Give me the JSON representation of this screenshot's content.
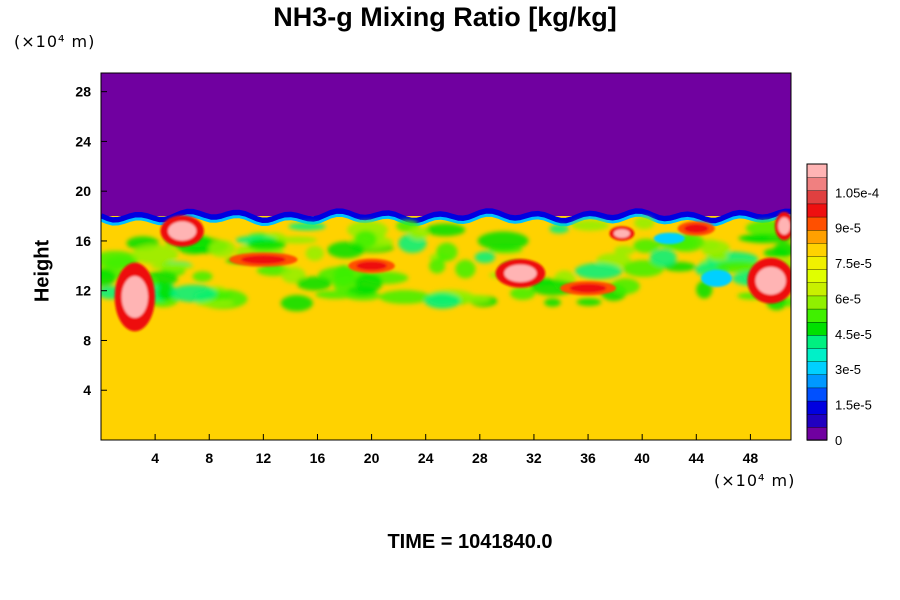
{
  "chart_data": {
    "type": "heatmap",
    "title": "NH3-g Mixing Ratio [kg/kg]",
    "ylabel": "Height",
    "xlabel": "",
    "x_unit_label": "(×10⁴ m)",
    "y_unit_label": "(×10⁴ m)",
    "xlim": [
      0,
      51
    ],
    "ylim": [
      0,
      29.5
    ],
    "x_ticks": [
      4,
      8,
      12,
      16,
      20,
      24,
      28,
      32,
      36,
      40,
      44,
      48
    ],
    "y_ticks": [
      4,
      8,
      12,
      16,
      20,
      24,
      28
    ],
    "colorbar": {
      "min": 0,
      "max": 0.000117,
      "tick_values": [
        0,
        1.5e-05,
        3e-05,
        4.5e-05,
        6e-05,
        7.5e-05,
        9e-05,
        0.000105
      ],
      "tick_labels": [
        "0",
        "1.5e-5",
        "3e-5",
        "4.5e-5",
        "6e-5",
        "7.5e-5",
        "9e-5",
        "1.05e-4"
      ],
      "colors": [
        "#7000a0",
        "#2000c0",
        "#0000e0",
        "#0050ff",
        "#0098ff",
        "#00d0ff",
        "#00f0c8",
        "#00f080",
        "#00e000",
        "#40f000",
        "#90f000",
        "#c8f000",
        "#e0ff00",
        "#f0f000",
        "#ffd200",
        "#ffa000",
        "#ff5000",
        "#ee1010",
        "#e04040",
        "#f08080",
        "#ffb4b4"
      ]
    },
    "fields": {
      "upper_value": 0,
      "lower_value": 7.85e-05,
      "interface_height": 18
    },
    "time_label": "TIME = 1041840.0"
  }
}
